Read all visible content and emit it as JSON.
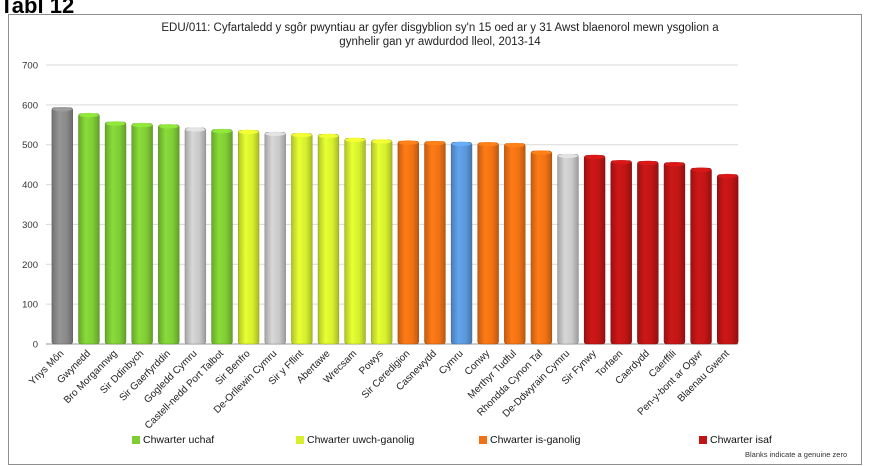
{
  "figure_label": "Tabl 12",
  "footnote": "Blanks indicate a genuine zero",
  "colors": {
    "grey": "#8a8a8a",
    "light_grey": "#c8c8c8",
    "green": "#7fcc35",
    "yellow_green": "#d6ef2e",
    "orange": "#f07214",
    "blue": "#5b98dc",
    "red": "#c01515"
  },
  "legend": [
    {
      "label": "Chwarter uchaf",
      "color": "#7fcc35"
    },
    {
      "label": "Chwarter uwch-ganolig",
      "color": "#d6ef2e"
    },
    {
      "label": "Chwarter is-ganolig",
      "color": "#f07214"
    },
    {
      "label": "Chwarter isaf",
      "color": "#c01515"
    }
  ],
  "chart_data": {
    "type": "bar",
    "title": "EDU/011: Cyfartaledd y sgôr pwyntiau ar gyfer disgyblion sy'n 15 oed ar y 31 Awst blaenorol mewn ysgolion a gynhelir gan yr awdurdod lleol, 2013-14",
    "title_lines": [
      "EDU/011: Cyfartaledd y sgôr pwyntiau ar gyfer disgyblion sy'n 15 oed ar y 31 Awst blaenorol mewn ysgolion a",
      "gynhelir gan yr awdurdod lleol, 2013-14"
    ],
    "xlabel": "",
    "ylabel": "",
    "ylim": [
      0,
      700
    ],
    "yticks": [
      "0",
      "100",
      "200",
      "300",
      "400",
      "500",
      "600",
      "700"
    ],
    "grid": true,
    "categories": [
      "Ynys Môn",
      "Gwynedd",
      "Bro Morgannwg",
      "Sir Ddinbych",
      "Sir Gaerfyrddin",
      "Gogledd Cymru",
      "Castell-nedd Port Talbot",
      "Sir Benfro",
      "De-Orllewin Cymru",
      "Sir y Fflint",
      "Abertawe",
      "Wrecsam",
      "Powys",
      "Sir Ceredigion",
      "Casnewydd",
      "Cymru",
      "Conwy",
      "Merthyr Tudful",
      "Rhondda Cynon Taf",
      "De-Ddwyrain Cymru",
      "Sir Fynwy",
      "Torfaen",
      "Caerdydd",
      "Caerffili",
      "Pen-y-bont ar Ogwr",
      "Blaenau Gwent"
    ],
    "values": [
      593,
      578,
      557,
      553,
      550,
      542,
      538,
      536,
      531,
      528,
      526,
      516,
      512,
      509,
      508,
      506,
      505,
      503,
      484,
      476,
      473,
      460,
      458,
      455,
      441,
      425
    ],
    "bar_colors": [
      "#8a8a8a",
      "#7fcc35",
      "#7fcc35",
      "#7fcc35",
      "#7fcc35",
      "#c8c8c8",
      "#7fcc35",
      "#d6ef2e",
      "#c8c8c8",
      "#d6ef2e",
      "#d6ef2e",
      "#d6ef2e",
      "#d6ef2e",
      "#f07214",
      "#f07214",
      "#5b98dc",
      "#f07214",
      "#f07214",
      "#f07214",
      "#c8c8c8",
      "#c01515",
      "#c01515",
      "#c01515",
      "#c01515",
      "#c01515",
      "#c01515"
    ]
  }
}
